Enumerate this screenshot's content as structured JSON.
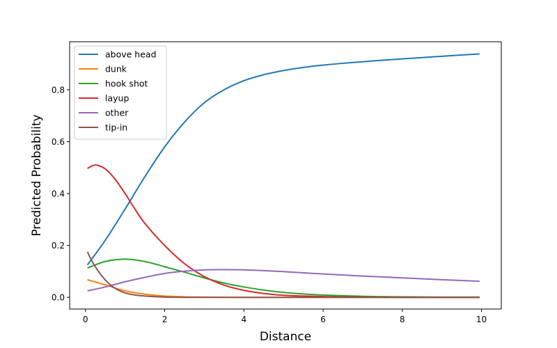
{
  "chart_data": {
    "type": "line",
    "xlabel": "Distance",
    "ylabel": "Predicted Probability",
    "xlim": [
      -0.4,
      10.5
    ],
    "ylim": [
      -0.045,
      0.985
    ],
    "xticks": [
      0,
      2,
      4,
      6,
      8,
      10
    ],
    "yticks": [
      0.0,
      0.2,
      0.4,
      0.6,
      0.8
    ],
    "grid": false,
    "legend_position": "top-left",
    "series": [
      {
        "name": "above head",
        "color": "#1f77b4",
        "x": [
          0.05,
          0.5,
          1.0,
          1.5,
          2.0,
          2.5,
          3.0,
          3.5,
          4.0,
          4.5,
          5.0,
          5.5,
          6.0,
          6.5,
          7.0,
          7.5,
          8.0,
          8.5,
          9.0,
          9.5,
          9.95
        ],
        "y": [
          0.125,
          0.22,
          0.34,
          0.465,
          0.58,
          0.675,
          0.75,
          0.8,
          0.835,
          0.858,
          0.874,
          0.886,
          0.895,
          0.902,
          0.908,
          0.914,
          0.919,
          0.924,
          0.929,
          0.934,
          0.938
        ]
      },
      {
        "name": "dunk",
        "color": "#ff7f0e",
        "x": [
          0.05,
          0.5,
          1.0,
          1.5,
          2.0,
          2.5,
          3.0,
          4.0,
          5.0,
          6.0,
          7.0,
          8.0,
          9.0,
          9.95
        ],
        "y": [
          0.068,
          0.048,
          0.025,
          0.012,
          0.005,
          0.002,
          0.001,
          0.0,
          0.0,
          0.0,
          0.0,
          0.0,
          0.0,
          0.0
        ]
      },
      {
        "name": "hook shot",
        "color": "#2ca02c",
        "x": [
          0.05,
          0.5,
          1.0,
          1.5,
          2.0,
          2.5,
          3.0,
          3.5,
          4.0,
          4.5,
          5.0,
          5.5,
          6.0,
          7.0,
          8.0,
          9.0,
          9.95
        ],
        "y": [
          0.113,
          0.138,
          0.147,
          0.138,
          0.118,
          0.097,
          0.075,
          0.055,
          0.04,
          0.028,
          0.019,
          0.013,
          0.009,
          0.004,
          0.002,
          0.001,
          0.001
        ]
      },
      {
        "name": "layup",
        "color": "#d62728",
        "x": [
          0.05,
          0.25,
          0.5,
          0.75,
          1.0,
          1.25,
          1.5,
          2.0,
          2.5,
          3.0,
          3.5,
          4.0,
          4.5,
          5.0,
          6.0,
          7.0,
          8.0,
          9.0,
          9.95
        ],
        "y": [
          0.497,
          0.51,
          0.495,
          0.455,
          0.4,
          0.34,
          0.285,
          0.2,
          0.13,
          0.08,
          0.047,
          0.027,
          0.015,
          0.008,
          0.003,
          0.001,
          0.0,
          0.0,
          0.0
        ]
      },
      {
        "name": "other",
        "color": "#9467bd",
        "x": [
          0.05,
          0.5,
          1.0,
          1.5,
          2.0,
          2.5,
          3.0,
          3.5,
          4.0,
          4.5,
          5.0,
          6.0,
          7.0,
          8.0,
          9.0,
          9.95
        ],
        "y": [
          0.025,
          0.04,
          0.06,
          0.077,
          0.092,
          0.101,
          0.106,
          0.107,
          0.106,
          0.103,
          0.099,
          0.09,
          0.082,
          0.075,
          0.068,
          0.062
        ]
      },
      {
        "name": "tip-in",
        "color": "#8c564b",
        "x": [
          0.05,
          0.2,
          0.4,
          0.6,
          0.8,
          1.0,
          1.25,
          1.5,
          2.0,
          2.5,
          3.0,
          4.0,
          5.0,
          6.0,
          7.0,
          8.0,
          9.0,
          9.95
        ],
        "y": [
          0.175,
          0.13,
          0.085,
          0.052,
          0.03,
          0.017,
          0.009,
          0.005,
          0.001,
          0.0,
          0.0,
          0.0,
          0.0,
          0.0,
          0.0,
          0.0,
          0.0,
          0.0
        ]
      }
    ]
  }
}
